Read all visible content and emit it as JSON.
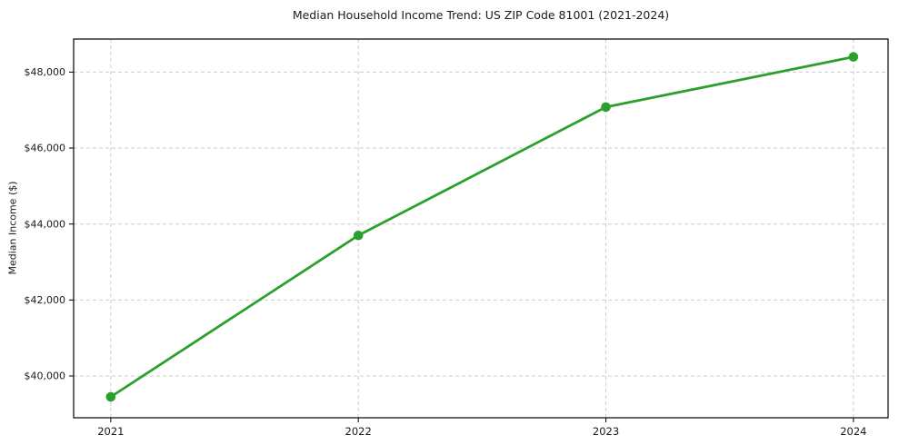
{
  "page": {
    "background": "#ffffff"
  },
  "chart_data": {
    "type": "line",
    "title": "Median Household Income Trend: US ZIP Code 81001 (2021-2024)",
    "xlabel": "",
    "ylabel": "Median Income ($)",
    "x": [
      2021,
      2022,
      2023,
      2024
    ],
    "x_tick_labels": [
      "2021",
      "2022",
      "2023",
      "2024"
    ],
    "series": [
      {
        "name": "Median Household Income",
        "values": [
          39450,
          43700,
          47080,
          48400
        ],
        "color": "#2ca02c",
        "marker": "circle",
        "line_width": 2.8,
        "marker_radius": 5.3
      }
    ],
    "xlim": [
      2020.85,
      2024.14
    ],
    "ylim": [
      38900,
      48870
    ],
    "y_ticks": [
      40000,
      42000,
      44000,
      46000,
      48000
    ],
    "y_tick_labels": [
      "$40,000",
      "$42,000",
      "$44,000",
      "$46,000",
      "$48,000"
    ],
    "grid": {
      "visible": true,
      "style": "dashed",
      "color": "#cccccc"
    },
    "legend": {
      "visible": false
    }
  }
}
